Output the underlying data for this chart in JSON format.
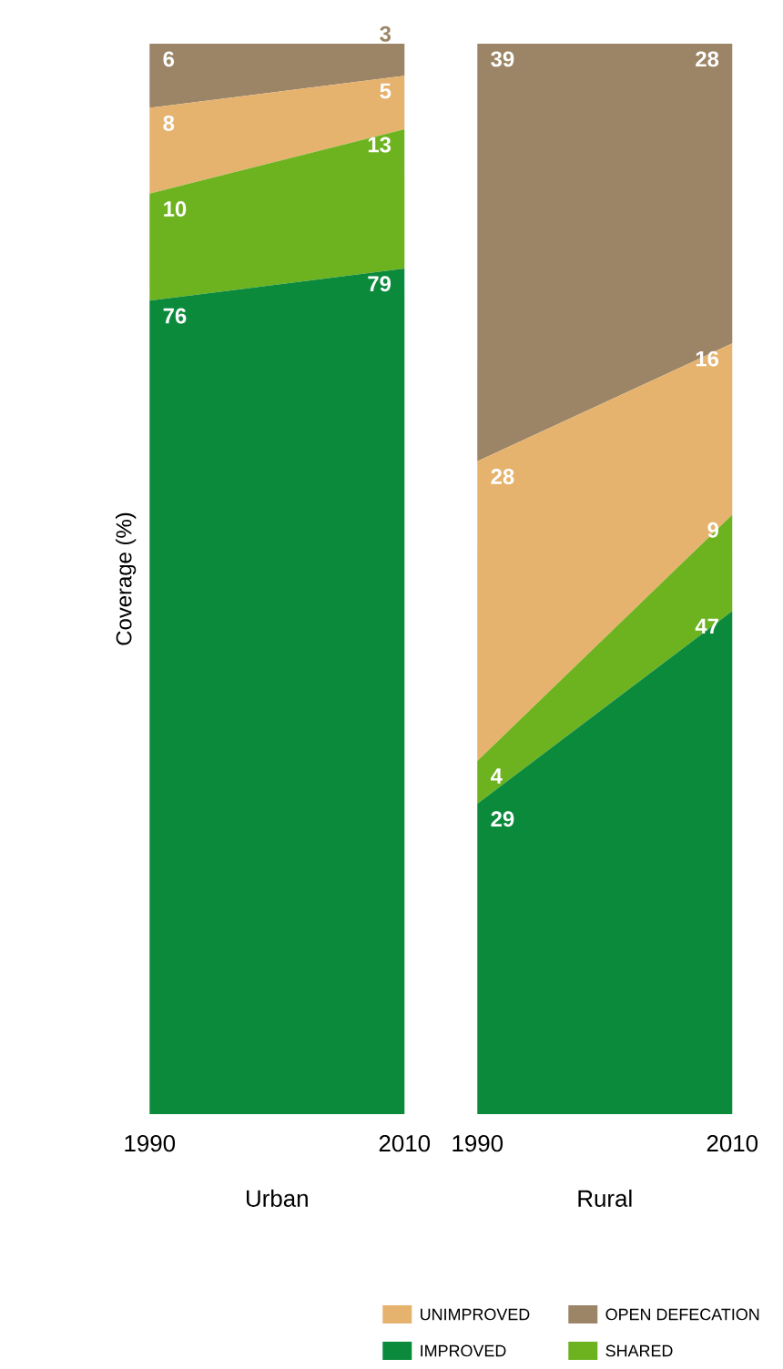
{
  "chart_data": [
    {
      "type": "area",
      "stacked": true,
      "xlabel": "Urban",
      "ylabel": "Coverage (%)",
      "categories": [
        "1990",
        "2010"
      ],
      "data_labels": true,
      "tick_labels": "x",
      "series": [
        {
          "color": "#0b8a3c",
          "values": [
            76,
            79
          ]
        },
        {
          "color": "#6db31f",
          "values": [
            10,
            13
          ]
        },
        {
          "color": "#e6b36f",
          "values": [
            8,
            5
          ]
        },
        {
          "color": "#9c8566",
          "values": [
            6,
            3
          ]
        }
      ]
    },
    {
      "type": "area",
      "stacked": true,
      "xlabel": "Rural",
      "categories": [
        "1990",
        "2010"
      ],
      "data_labels": true,
      "tick_labels": "x",
      "legend": "bottom",
      "series": [
        {
          "name": "IMPROVED",
          "color": "#0b8a3c",
          "values": [
            29,
            47
          ]
        },
        {
          "name": "SHARED",
          "color": "#6db31f",
          "values": [
            4,
            9
          ]
        },
        {
          "name": "UNIMPROVED",
          "color": "#e6b36f",
          "values": [
            28,
            16
          ]
        },
        {
          "name": "OPEN DEFECATION",
          "color": "#9c8566",
          "values": [
            39,
            28
          ]
        }
      ]
    }
  ]
}
